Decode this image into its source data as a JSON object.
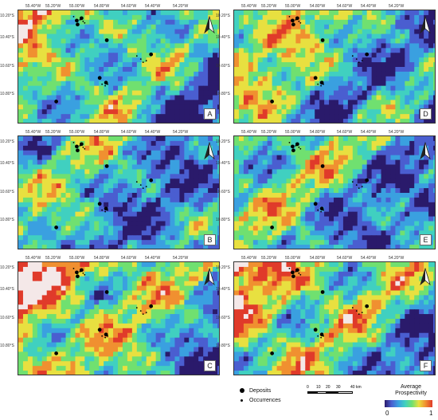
{
  "panels": [
    {
      "id": "A",
      "letter": "A",
      "hot": 0.7,
      "seed": 11
    },
    {
      "id": "D",
      "letter": "D",
      "hot": 0.65,
      "seed": 23
    },
    {
      "id": "B",
      "letter": "B",
      "hot": 0.45,
      "seed": 37
    },
    {
      "id": "E",
      "letter": "E",
      "hot": 0.55,
      "seed": 41
    },
    {
      "id": "C",
      "letter": "C",
      "hot": 0.95,
      "seed": 53
    },
    {
      "id": "F",
      "letter": "F",
      "hot": 0.9,
      "seed": 67
    }
  ],
  "longitude_labels": [
    "55.40°W",
    "55.20°W",
    "55.00°W",
    "54.80°W",
    "54.60°W",
    "54.40°W",
    "54.20°W"
  ],
  "latitude_labels": [
    "10.20°S",
    "10.40°S",
    "10.60°S",
    "10.80°S"
  ],
  "legend": {
    "deposits_label": "Deposits",
    "occurrences_label": "Occurrences",
    "scale_ticks": [
      "0",
      "10",
      "20",
      "30",
      "40 km"
    ],
    "colorbar_title_line1": "Average",
    "colorbar_title_line2": "Prospectivity",
    "colorbar_min": "0",
    "colorbar_max": "1",
    "colors": [
      "#2a1a6b",
      "#4a5ed0",
      "#3aa0e0",
      "#40d0c0",
      "#70e070",
      "#e8e040",
      "#f09030",
      "#e03a2a",
      "#f4e8e8"
    ]
  }
}
